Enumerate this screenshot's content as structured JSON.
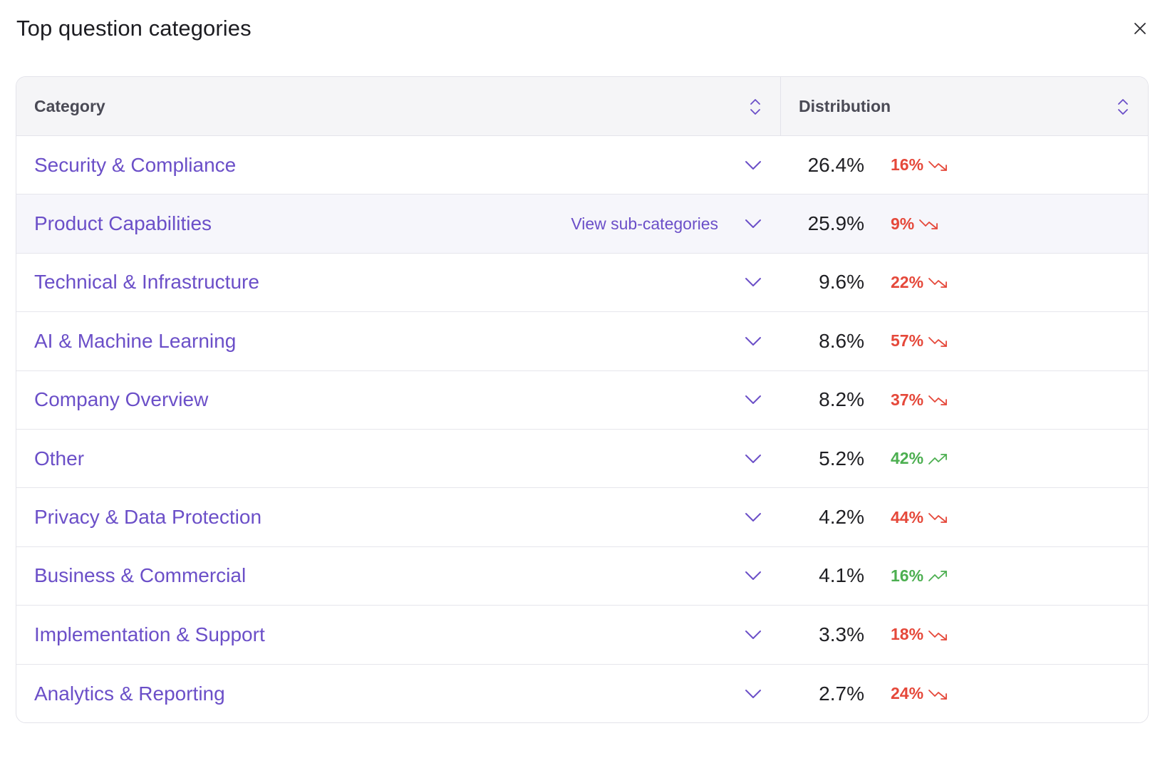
{
  "title": "Top question categories",
  "colors": {
    "accent": "#6b4fc8",
    "trend_down": "#e5483a",
    "trend_up": "#4caf50",
    "header_bg": "#f5f5f7",
    "hover_bg": "#f6f6fb"
  },
  "icons": {
    "close": "close-icon",
    "sort": "sort-icon",
    "expand": "chevron-down-icon",
    "trend_down": "trend-down-icon",
    "trend_up": "trend-up-icon"
  },
  "table": {
    "headers": {
      "category": "Category",
      "distribution": "Distribution"
    },
    "hover_action": "View sub-categories",
    "rows": [
      {
        "category": "Security & Compliance",
        "distribution": "26.4%",
        "change": "16%",
        "direction": "down"
      },
      {
        "category": "Product Capabilities",
        "distribution": "25.9%",
        "change": "9%",
        "direction": "down",
        "hovered": true
      },
      {
        "category": "Technical & Infrastructure",
        "distribution": "9.6%",
        "change": "22%",
        "direction": "down"
      },
      {
        "category": "AI & Machine Learning",
        "distribution": "8.6%",
        "change": "57%",
        "direction": "down"
      },
      {
        "category": "Company Overview",
        "distribution": "8.2%",
        "change": "37%",
        "direction": "down"
      },
      {
        "category": "Other",
        "distribution": "5.2%",
        "change": "42%",
        "direction": "up"
      },
      {
        "category": "Privacy & Data Protection",
        "distribution": "4.2%",
        "change": "44%",
        "direction": "down"
      },
      {
        "category": "Business & Commercial",
        "distribution": "4.1%",
        "change": "16%",
        "direction": "up"
      },
      {
        "category": "Implementation & Support",
        "distribution": "3.3%",
        "change": "18%",
        "direction": "down"
      },
      {
        "category": "Analytics & Reporting",
        "distribution": "2.7%",
        "change": "24%",
        "direction": "down"
      }
    ]
  }
}
